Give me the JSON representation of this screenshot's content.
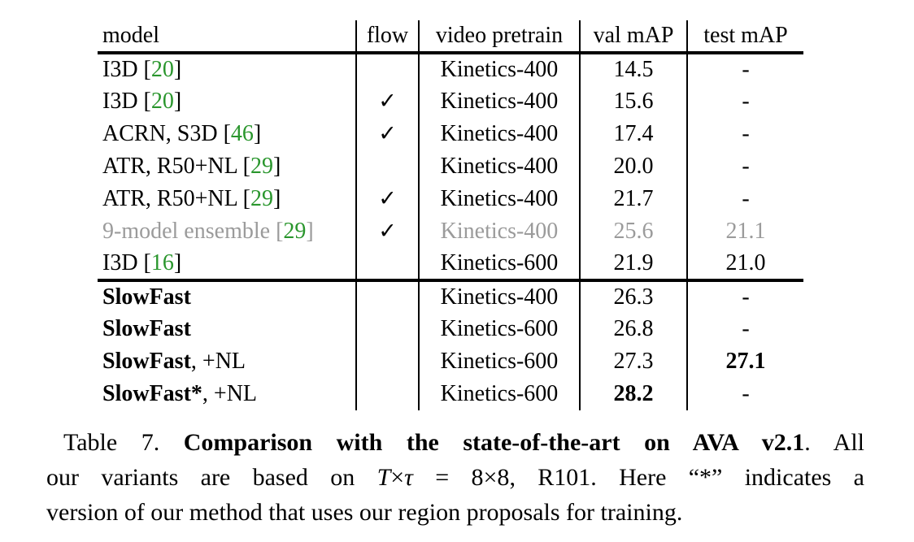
{
  "accent_colors": {
    "citation_green": "#2a962d",
    "dim_gray": "#9b9b9b"
  },
  "table": {
    "headers": [
      "model",
      "flow",
      "video pretrain",
      "val mAP",
      "test mAP"
    ],
    "checkmark": "✓",
    "rows": [
      {
        "model": "I3D",
        "model_bold": false,
        "model_suffix": "",
        "cite": "20",
        "flow": false,
        "pretrain": "Kinetics-400",
        "val": "14.5",
        "val_bold": false,
        "test": "-",
        "test_bold": false,
        "dim": false,
        "group_start": false
      },
      {
        "model": "I3D",
        "model_bold": false,
        "model_suffix": "",
        "cite": "20",
        "flow": true,
        "pretrain": "Kinetics-400",
        "val": "15.6",
        "val_bold": false,
        "test": "-",
        "test_bold": false,
        "dim": false,
        "group_start": false
      },
      {
        "model": "ACRN, S3D",
        "model_bold": false,
        "model_suffix": "",
        "cite": "46",
        "flow": true,
        "pretrain": "Kinetics-400",
        "val": "17.4",
        "val_bold": false,
        "test": "-",
        "test_bold": false,
        "dim": false,
        "group_start": false
      },
      {
        "model": "ATR, R50+NL",
        "model_bold": false,
        "model_suffix": "",
        "cite": "29",
        "flow": false,
        "pretrain": "Kinetics-400",
        "val": "20.0",
        "val_bold": false,
        "test": "-",
        "test_bold": false,
        "dim": false,
        "group_start": false
      },
      {
        "model": "ATR, R50+NL",
        "model_bold": false,
        "model_suffix": "",
        "cite": "29",
        "flow": true,
        "pretrain": "Kinetics-400",
        "val": "21.7",
        "val_bold": false,
        "test": "-",
        "test_bold": false,
        "dim": false,
        "group_start": false
      },
      {
        "model": "9-model ensemble",
        "model_bold": false,
        "model_suffix": "",
        "cite": "29",
        "flow": true,
        "pretrain": "Kinetics-400",
        "val": "25.6",
        "val_bold": false,
        "test": "21.1",
        "test_bold": false,
        "dim": true,
        "group_start": false
      },
      {
        "model": "I3D",
        "model_bold": false,
        "model_suffix": "",
        "cite": "16",
        "flow": false,
        "pretrain": "Kinetics-600",
        "val": "21.9",
        "val_bold": false,
        "test": "21.0",
        "test_bold": false,
        "dim": false,
        "group_start": false
      },
      {
        "model": "SlowFast",
        "model_bold": true,
        "model_suffix": "",
        "cite": "",
        "flow": false,
        "pretrain": "Kinetics-400",
        "val": "26.3",
        "val_bold": false,
        "test": "-",
        "test_bold": false,
        "dim": false,
        "group_start": true
      },
      {
        "model": "SlowFast",
        "model_bold": true,
        "model_suffix": "",
        "cite": "",
        "flow": false,
        "pretrain": "Kinetics-600",
        "val": "26.8",
        "val_bold": false,
        "test": "-",
        "test_bold": false,
        "dim": false,
        "group_start": false
      },
      {
        "model": "SlowFast",
        "model_bold": true,
        "model_suffix": ", +NL",
        "cite": "",
        "flow": false,
        "pretrain": "Kinetics-600",
        "val": "27.3",
        "val_bold": false,
        "test": "27.1",
        "test_bold": true,
        "dim": false,
        "group_start": false
      },
      {
        "model": "SlowFast*",
        "model_bold": true,
        "model_suffix": ", +NL",
        "cite": "",
        "flow": false,
        "pretrain": "Kinetics-600",
        "val": "28.2",
        "val_bold": true,
        "test": "-",
        "test_bold": false,
        "dim": false,
        "group_start": false
      }
    ]
  },
  "caption": {
    "line1": {
      "prefix": "Table 7. ",
      "bold": "Comparison with the state-of-the-art on AVA v2.1",
      "suffix": ". All"
    },
    "line2": {
      "prefix": "our variants are based on ",
      "math_T": "T",
      "math_times": "×",
      "math_tau": "τ",
      "math_eq": " = ",
      "math_value": "8×8",
      "suffix": ", R101. Here “*” indicates a"
    },
    "line3": "version of our method that uses our region proposals for training."
  }
}
